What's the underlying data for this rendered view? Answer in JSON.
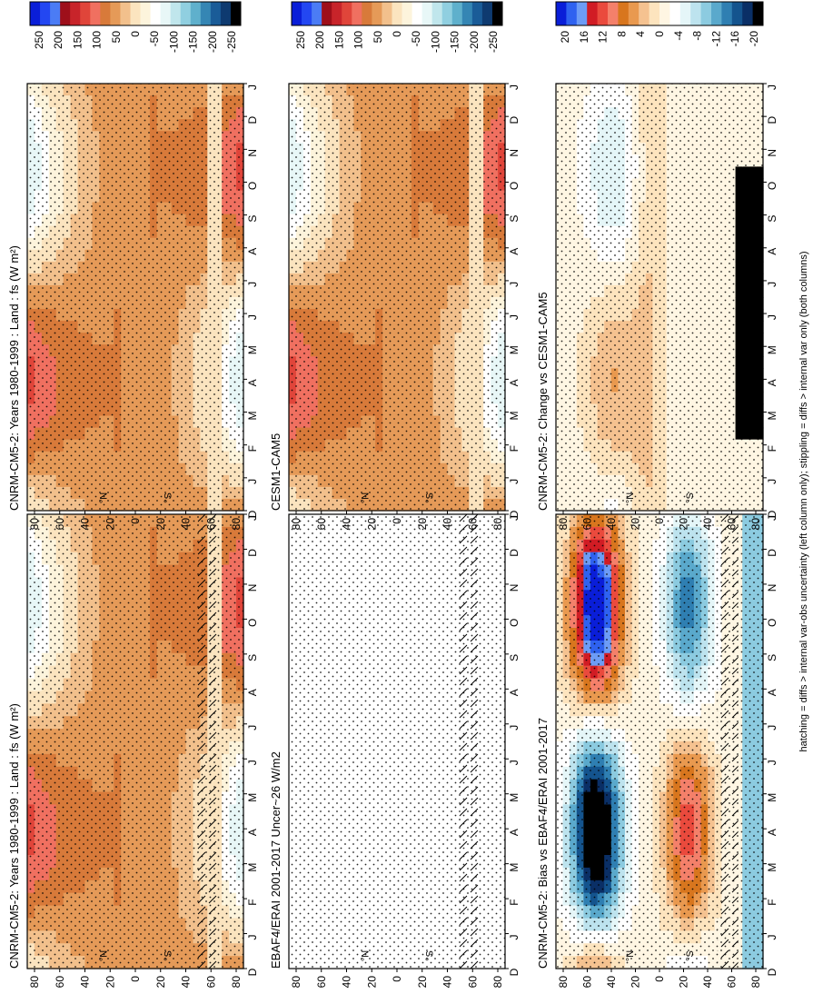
{
  "footer_note": "hatching = diffs > internal var-obs uncertainty (left column only); stippling = diffs > internal var only (both columns)",
  "month_labels": [
    "D",
    "J",
    "F",
    "M",
    "A",
    "M",
    "J",
    "J",
    "A",
    "S",
    "O",
    "N",
    "D",
    "J"
  ],
  "lat_labels": [
    "80",
    "60",
    "40",
    "20",
    "0",
    "20",
    "40",
    "60",
    "80"
  ],
  "lat_units": [
    "°N",
    "°S"
  ],
  "colors": {
    "flux": [
      "#0a1ed8",
      "#2347f2",
      "#4b7cf5",
      "#9e0f1a",
      "#c8242a",
      "#e0453a",
      "#f07060",
      "#d87a3a",
      "#e59a58",
      "#f2c08c",
      "#fbe4bf",
      "#fdf4dc",
      "#ffffff",
      "#e8f7f7",
      "#c0e6ec",
      "#90cfe0",
      "#5fb0cc",
      "#3586b4",
      "#1a5c98",
      "#0e3a70",
      "#000000"
    ],
    "diff": [
      "#0a1ed8",
      "#2f62f0",
      "#6d9cf6",
      "#d11c24",
      "#ea4a3d",
      "#f4806a",
      "#d8761e",
      "#e9994f",
      "#f5c290",
      "#fde4be",
      "#fff6e3",
      "#ffffff",
      "#e5f6f8",
      "#bde3ee",
      "#8ccbe0",
      "#5aa9cc",
      "#2f7fb2",
      "#14548e",
      "#0a2f66",
      "#000000"
    ]
  },
  "chart_data": [
    {
      "type": "heatmap",
      "title": "CNRM-CM5-2: Years 1980-1999 : Land : fs (W m²)",
      "x": [
        "D",
        "J",
        "F",
        "M",
        "A",
        "M",
        "J",
        "J",
        "A",
        "S",
        "O",
        "N",
        "D",
        "J"
      ],
      "y_range": [
        -90,
        90
      ],
      "colorbar_ticks": [
        "250",
        "200",
        "150",
        "100",
        "50",
        "0",
        "-50",
        "-100",
        "-150",
        "-200",
        "-250"
      ],
      "field": "model_flux",
      "overlays": [
        "stippling",
        "hatching"
      ]
    },
    {
      "type": "heatmap",
      "title": "CNRM-CM5-2: Years 1980-1999 : Land : fs (W m²)",
      "x": [
        "D",
        "J",
        "F",
        "M",
        "A",
        "M",
        "J",
        "J",
        "A",
        "S",
        "O",
        "N",
        "D",
        "J"
      ],
      "y_range": [
        -90,
        90
      ],
      "colorbar_ticks": [
        "250",
        "200",
        "150",
        "100",
        "50",
        "0",
        "-50",
        "-100",
        "-150",
        "-200",
        "-250"
      ],
      "field": "model_flux",
      "overlays": [
        "stippling"
      ]
    },
    {
      "type": "heatmap",
      "title": "EBAF4/ERAI 2001-2017 Uncer~26 W/m2",
      "x": [
        "D",
        "J",
        "F",
        "M",
        "A",
        "M",
        "J",
        "J",
        "A",
        "S",
        "O",
        "N",
        "D",
        "J"
      ],
      "y_range": [
        -90,
        90
      ],
      "colorbar_ticks": [
        "250",
        "200",
        "150",
        "100",
        "50",
        "0",
        "-50",
        "-100",
        "-150",
        "-200",
        "-250"
      ],
      "field": "uncertainty",
      "overlays": [
        "stippling",
        "hatching"
      ]
    },
    {
      "type": "heatmap",
      "title": "CESM1-CAM5",
      "x": [
        "D",
        "J",
        "F",
        "M",
        "A",
        "M",
        "J",
        "J",
        "A",
        "S",
        "O",
        "N",
        "D",
        "J"
      ],
      "y_range": [
        -90,
        90
      ],
      "colorbar_ticks": [
        "250",
        "200",
        "150",
        "100",
        "50",
        "0",
        "-50",
        "-100",
        "-150",
        "-200",
        "-250"
      ],
      "field": "model_flux",
      "overlays": [
        "stippling"
      ]
    },
    {
      "type": "heatmap",
      "title": "CNRM-CM5-2: Bias vs EBAF4/ERAI 2001-2017",
      "x": [
        "D",
        "J",
        "F",
        "M",
        "A",
        "M",
        "J",
        "J",
        "A",
        "S",
        "O",
        "N",
        "D",
        "J"
      ],
      "y_range": [
        -90,
        90
      ],
      "colorbar_ticks": [
        "20",
        "16",
        "12",
        "8",
        "4",
        "0",
        "-4",
        "-8",
        "-12",
        "-16",
        "-20"
      ],
      "field": "bias",
      "overlays": [
        "stippling",
        "hatching"
      ]
    },
    {
      "type": "heatmap",
      "title": "CNRM-CM5-2: Change vs CESM1-CAM5",
      "x": [
        "D",
        "J",
        "F",
        "M",
        "A",
        "M",
        "J",
        "J",
        "A",
        "S",
        "O",
        "N",
        "D",
        "J"
      ],
      "y_range": [
        -90,
        90
      ],
      "colorbar_ticks": [
        "20",
        "16",
        "12",
        "8",
        "4",
        "0",
        "-4",
        "-8",
        "-12",
        "-16",
        "-20"
      ],
      "field": "change",
      "overlays": [
        "stippling"
      ]
    }
  ]
}
